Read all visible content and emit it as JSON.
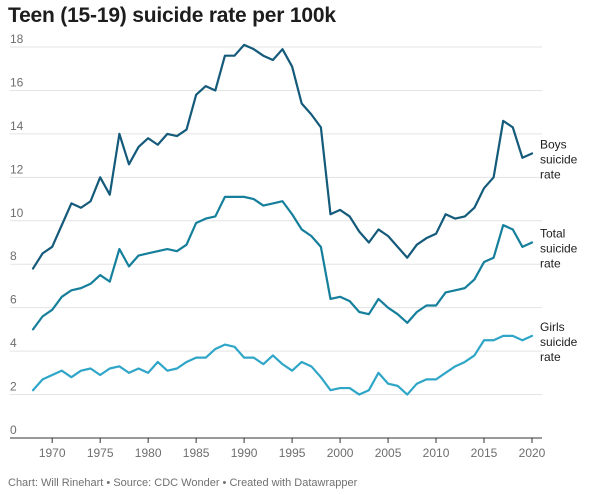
{
  "chart_data": {
    "type": "line",
    "title": "Teen (15-19) suicide rate per 100k",
    "xlabel": "",
    "ylabel": "",
    "xlim": [
      1968,
      2020
    ],
    "ylim": [
      0,
      18
    ],
    "x_ticks": [
      1970,
      1975,
      1980,
      1985,
      1990,
      1995,
      2000,
      2005,
      2010,
      2015,
      2020
    ],
    "y_ticks": [
      0,
      2,
      4,
      6,
      8,
      10,
      12,
      14,
      16,
      18
    ],
    "grid": true,
    "legend": "direct labels at right end of lines",
    "x": [
      1968,
      1969,
      1970,
      1971,
      1972,
      1973,
      1974,
      1975,
      1976,
      1977,
      1978,
      1979,
      1980,
      1981,
      1982,
      1983,
      1984,
      1985,
      1986,
      1987,
      1988,
      1989,
      1990,
      1991,
      1992,
      1993,
      1994,
      1995,
      1996,
      1997,
      1998,
      1999,
      2000,
      2001,
      2002,
      2003,
      2004,
      2005,
      2006,
      2007,
      2008,
      2009,
      2010,
      2011,
      2012,
      2013,
      2014,
      2015,
      2016,
      2017,
      2018,
      2019,
      2020
    ],
    "series": [
      {
        "name": "Boys suicide rate",
        "label_lines": [
          "Boys",
          "suicide",
          "rate"
        ],
        "color": "#145a7a",
        "values": [
          7.8,
          8.5,
          8.8,
          9.8,
          10.8,
          10.6,
          10.9,
          12.0,
          11.2,
          14.0,
          12.6,
          13.4,
          13.8,
          13.5,
          14.0,
          13.9,
          14.2,
          15.8,
          16.2,
          16.0,
          17.6,
          17.6,
          18.1,
          17.9,
          17.6,
          17.4,
          17.9,
          17.1,
          15.4,
          14.9,
          14.3,
          10.3,
          10.5,
          10.2,
          9.5,
          9.0,
          9.6,
          9.3,
          8.8,
          8.3,
          8.9,
          9.2,
          9.4,
          10.3,
          10.1,
          10.2,
          10.6,
          11.5,
          12.0,
          14.6,
          14.3,
          12.9,
          13.1
        ]
      },
      {
        "name": "Total suicide rate",
        "label_lines": [
          "Total",
          "suicide",
          "rate"
        ],
        "color": "#157f9c",
        "values": [
          5.0,
          5.6,
          5.9,
          6.5,
          6.8,
          6.9,
          7.1,
          7.5,
          7.2,
          8.7,
          7.9,
          8.4,
          8.5,
          8.6,
          8.7,
          8.6,
          8.9,
          9.9,
          10.1,
          10.2,
          11.1,
          11.1,
          11.1,
          11.0,
          10.7,
          10.8,
          10.9,
          10.3,
          9.6,
          9.3,
          8.8,
          6.4,
          6.5,
          6.3,
          5.8,
          5.7,
          6.4,
          6.0,
          5.7,
          5.3,
          5.8,
          6.1,
          6.1,
          6.7,
          6.8,
          6.9,
          7.3,
          8.1,
          8.3,
          9.8,
          9.6,
          8.8,
          9.0
        ]
      },
      {
        "name": "Girls suicide rate",
        "label_lines": [
          "Girls",
          "suicide",
          "rate"
        ],
        "color": "#2fa6c8",
        "values": [
          2.2,
          2.7,
          2.9,
          3.1,
          2.8,
          3.1,
          3.2,
          2.9,
          3.2,
          3.3,
          3.0,
          3.2,
          3.0,
          3.5,
          3.1,
          3.2,
          3.5,
          3.7,
          3.7,
          4.1,
          4.3,
          4.2,
          3.7,
          3.7,
          3.4,
          3.8,
          3.4,
          3.1,
          3.5,
          3.3,
          2.8,
          2.2,
          2.3,
          2.3,
          2.0,
          2.2,
          3.0,
          2.5,
          2.4,
          2.0,
          2.5,
          2.7,
          2.7,
          3.0,
          3.3,
          3.5,
          3.8,
          4.5,
          4.5,
          4.7,
          4.7,
          4.5,
          4.7
        ]
      }
    ]
  },
  "footer": {
    "text": "Chart: Will Rinehart • Source: CDC Wonder • Created with Datawrapper"
  }
}
